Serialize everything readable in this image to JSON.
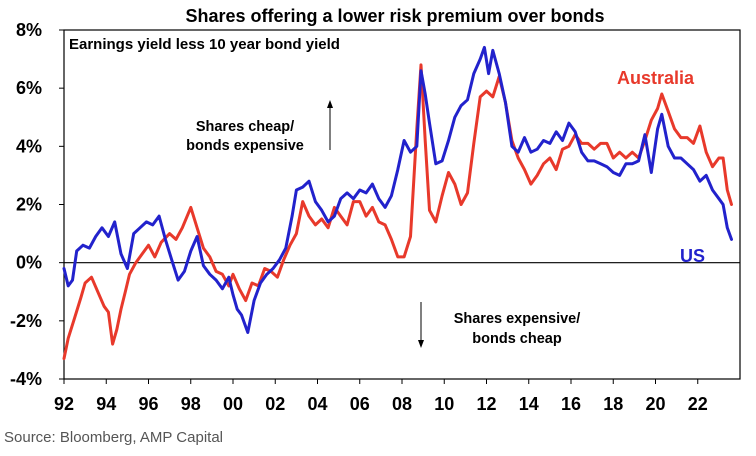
{
  "source": "Source: Bloomberg, AMP Capital",
  "chart_data": {
    "type": "line",
    "title": "Shares offering a lower risk premium over bonds",
    "subtitle": "Earnings yield less 10 year bond yield",
    "xlabel": "",
    "ylabel": "",
    "xlim": [
      1992,
      2024
    ],
    "ylim": [
      -4,
      8
    ],
    "yticks": [
      -4,
      -2,
      0,
      2,
      4,
      6,
      8
    ],
    "ytick_labels": [
      "-4%",
      "-2%",
      "0%",
      "2%",
      "4%",
      "6%",
      "8%"
    ],
    "xticks": [
      1992,
      1994,
      1996,
      1998,
      2000,
      2002,
      2004,
      2006,
      2008,
      2010,
      2012,
      2014,
      2016,
      2018,
      2020,
      2022
    ],
    "xtick_labels": [
      "92",
      "94",
      "96",
      "98",
      "00",
      "02",
      "04",
      "06",
      "08",
      "10",
      "12",
      "14",
      "16",
      "18",
      "20",
      "22"
    ],
    "annotations": {
      "upper_line1": "Shares cheap/",
      "upper_line2": "bonds expensive",
      "lower_line1": "Shares expensive/",
      "lower_line2": "bonds cheap"
    },
    "series": [
      {
        "name": "Australia",
        "color": "#e8392b",
        "x": [
          1992.0,
          1992.2,
          1992.5,
          1992.8,
          1993.0,
          1993.3,
          1993.6,
          1993.9,
          1994.1,
          1994.3,
          1994.5,
          1994.7,
          1994.9,
          1995.1,
          1995.4,
          1995.7,
          1996.0,
          1996.3,
          1996.6,
          1997.0,
          1997.3,
          1997.6,
          1998.0,
          1998.3,
          1998.6,
          1998.9,
          1999.2,
          1999.5,
          1999.8,
          2000.0,
          2000.3,
          2000.6,
          2000.9,
          2001.2,
          2001.5,
          2001.8,
          2002.1,
          2002.4,
          2002.7,
          2003.0,
          2003.3,
          2003.6,
          2003.9,
          2004.2,
          2004.5,
          2004.8,
          2005.1,
          2005.4,
          2005.7,
          2006.0,
          2006.3,
          2006.6,
          2006.9,
          2007.2,
          2007.5,
          2007.8,
          2008.1,
          2008.4,
          2008.7,
          2008.9,
          2009.1,
          2009.3,
          2009.6,
          2009.9,
          2010.2,
          2010.5,
          2010.8,
          2011.1,
          2011.4,
          2011.7,
          2012.0,
          2012.3,
          2012.6,
          2012.9,
          2013.2,
          2013.5,
          2013.8,
          2014.1,
          2014.4,
          2014.7,
          2015.0,
          2015.3,
          2015.6,
          2015.9,
          2016.2,
          2016.5,
          2016.8,
          2017.1,
          2017.4,
          2017.7,
          2018.0,
          2018.3,
          2018.6,
          2018.9,
          2019.2,
          2019.5,
          2019.8,
          2020.1,
          2020.3,
          2020.6,
          2020.9,
          2021.2,
          2021.5,
          2021.8,
          2022.1,
          2022.4,
          2022.7,
          2023.0,
          2023.2,
          2023.4,
          2023.6
        ],
        "values": [
          -3.3,
          -2.6,
          -1.9,
          -1.2,
          -0.7,
          -0.5,
          -1.0,
          -1.5,
          -1.7,
          -2.8,
          -2.3,
          -1.6,
          -1.0,
          -0.4,
          0.0,
          0.3,
          0.6,
          0.2,
          0.7,
          1.0,
          0.8,
          1.2,
          1.9,
          1.2,
          0.5,
          0.2,
          -0.3,
          -0.4,
          -0.8,
          -0.4,
          -0.9,
          -1.3,
          -0.7,
          -0.8,
          -0.2,
          -0.3,
          -0.5,
          0.1,
          0.6,
          1.0,
          2.1,
          1.6,
          1.3,
          1.5,
          1.2,
          1.9,
          1.6,
          1.3,
          2.1,
          2.1,
          1.6,
          1.9,
          1.4,
          1.3,
          0.8,
          0.2,
          0.2,
          0.9,
          4.6,
          6.8,
          4.2,
          1.8,
          1.4,
          2.3,
          3.1,
          2.7,
          2.0,
          2.4,
          4.1,
          5.7,
          5.9,
          5.7,
          6.4,
          5.5,
          4.2,
          3.6,
          3.2,
          2.7,
          3.0,
          3.4,
          3.6,
          3.2,
          3.9,
          4.0,
          4.4,
          4.1,
          4.1,
          3.9,
          4.1,
          4.1,
          3.6,
          3.8,
          3.6,
          3.8,
          3.6,
          4.2,
          4.9,
          5.3,
          5.8,
          5.2,
          4.6,
          4.3,
          4.3,
          4.1,
          4.7,
          3.8,
          3.3,
          3.6,
          3.6,
          2.5,
          2.0
        ]
      },
      {
        "name": "US",
        "color": "#2222cc",
        "x": [
          1992.0,
          1992.2,
          1992.4,
          1992.6,
          1992.9,
          1993.2,
          1993.5,
          1993.8,
          1994.1,
          1994.4,
          1994.7,
          1995.0,
          1995.3,
          1995.6,
          1995.9,
          1996.2,
          1996.5,
          1996.8,
          1997.1,
          1997.4,
          1997.7,
          1998.0,
          1998.3,
          1998.6,
          1998.9,
          1999.2,
          1999.5,
          1999.8,
          2000.0,
          2000.2,
          2000.4,
          2000.7,
          2001.0,
          2001.3,
          2001.6,
          2001.9,
          2002.2,
          2002.5,
          2002.8,
          2003.0,
          2003.3,
          2003.6,
          2003.9,
          2004.2,
          2004.5,
          2004.8,
          2005.1,
          2005.4,
          2005.7,
          2006.0,
          2006.3,
          2006.6,
          2006.9,
          2007.2,
          2007.5,
          2007.8,
          2008.1,
          2008.4,
          2008.7,
          2008.9,
          2009.1,
          2009.3,
          2009.6,
          2009.9,
          2010.2,
          2010.5,
          2010.8,
          2011.1,
          2011.4,
          2011.7,
          2011.9,
          2012.1,
          2012.3,
          2012.6,
          2012.9,
          2013.2,
          2013.5,
          2013.8,
          2014.1,
          2014.4,
          2014.7,
          2015.0,
          2015.3,
          2015.6,
          2015.9,
          2016.2,
          2016.5,
          2016.8,
          2017.1,
          2017.4,
          2017.7,
          2018.0,
          2018.3,
          2018.6,
          2018.9,
          2019.2,
          2019.5,
          2019.8,
          2020.1,
          2020.3,
          2020.6,
          2020.9,
          2021.2,
          2021.5,
          2021.8,
          2022.1,
          2022.4,
          2022.7,
          2023.0,
          2023.2,
          2023.4,
          2023.6
        ],
        "values": [
          -0.2,
          -0.8,
          -0.6,
          0.4,
          0.6,
          0.5,
          0.9,
          1.2,
          0.9,
          1.4,
          0.3,
          -0.2,
          1.0,
          1.2,
          1.4,
          1.3,
          1.6,
          0.8,
          0.1,
          -0.6,
          -0.3,
          0.4,
          0.9,
          -0.1,
          -0.4,
          -0.6,
          -0.9,
          -0.5,
          -1.1,
          -1.6,
          -1.8,
          -2.4,
          -1.3,
          -0.7,
          -0.4,
          -0.2,
          0.1,
          0.5,
          1.6,
          2.5,
          2.6,
          2.8,
          2.1,
          1.8,
          1.4,
          1.6,
          2.2,
          2.4,
          2.2,
          2.5,
          2.4,
          2.7,
          2.2,
          1.9,
          2.3,
          3.2,
          4.2,
          3.8,
          4.0,
          6.6,
          5.8,
          4.8,
          3.4,
          3.5,
          4.2,
          5.0,
          5.4,
          5.6,
          6.5,
          7.0,
          7.4,
          6.5,
          7.3,
          6.5,
          5.5,
          4.0,
          3.8,
          4.3,
          3.8,
          3.9,
          4.2,
          4.1,
          4.5,
          4.2,
          4.8,
          4.5,
          3.8,
          3.5,
          3.5,
          3.4,
          3.3,
          3.1,
          3.0,
          3.4,
          3.4,
          3.5,
          4.4,
          3.1,
          4.6,
          5.1,
          4.0,
          3.6,
          3.6,
          3.4,
          3.2,
          2.8,
          3.0,
          2.5,
          2.2,
          2.0,
          1.2,
          0.8
        ]
      }
    ]
  }
}
